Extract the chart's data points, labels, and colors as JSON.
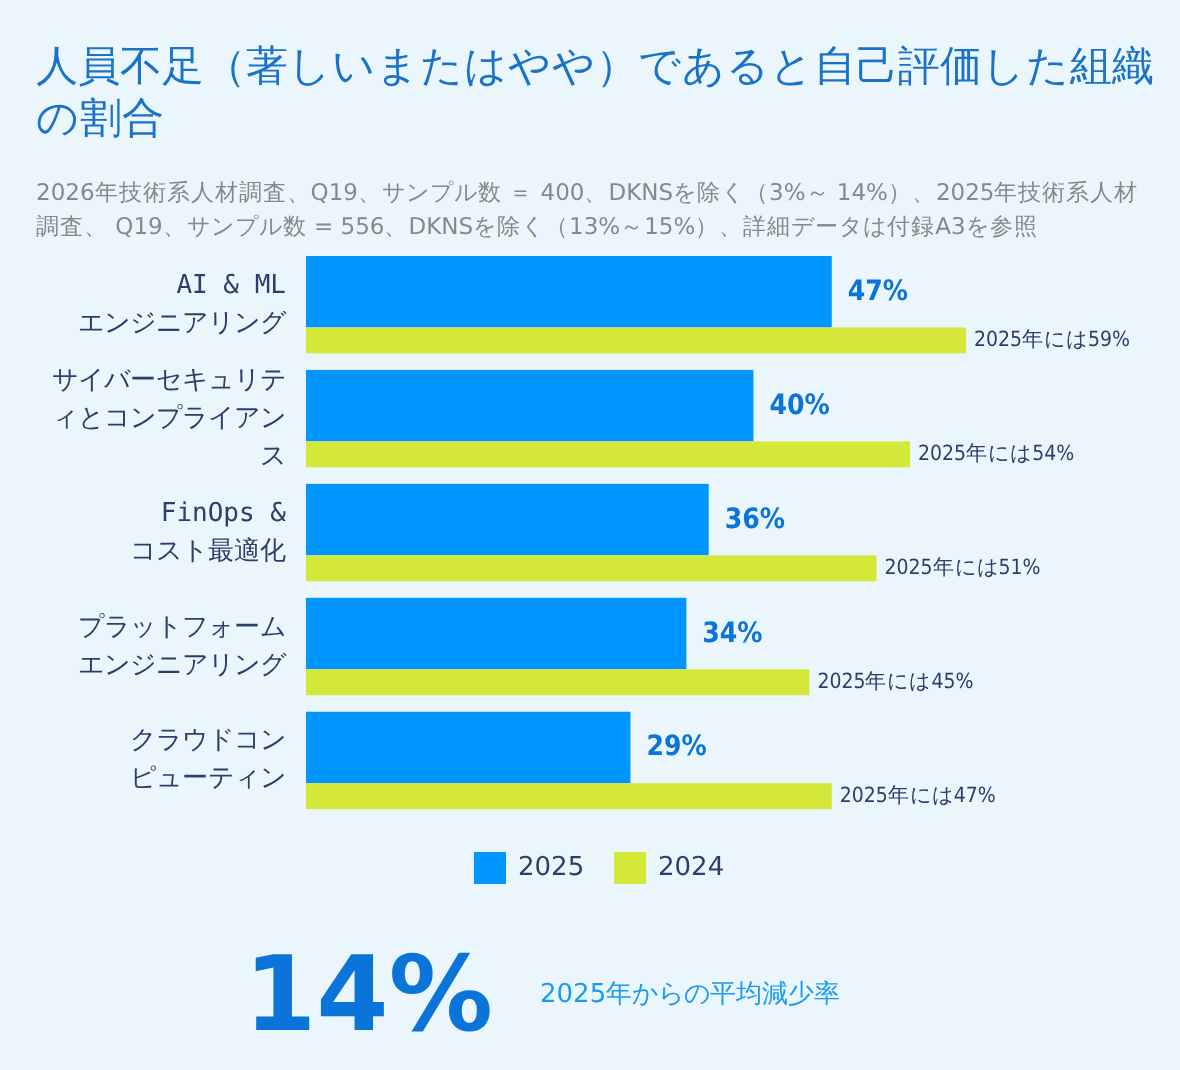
{
  "chart_data": {
    "type": "bar",
    "orientation": "horizontal",
    "title": "人員不足（著しいまたはやや）であると自己評価した組織の割合",
    "subtitle": "2026年技術系人材調査、Q19、サンプル数 ＝ 400、DKNSを除く（3%～ 14%）、2025年技術系人材調査、 Q19、サンプル数 = 556、DKNSを除く（13%～15%）、詳細データは付録A3を参照",
    "categories": [
      "AI & ML\nエンジニアリング",
      "サイバーセキュリティとコンプライアンス",
      "FinOps &\nコスト最適化",
      "プラットフォームエンジニアリング",
      "クラウドコンピューティン"
    ],
    "series": [
      {
        "name": "2025",
        "color": "#0095ff",
        "values": [
          47,
          40,
          36,
          34,
          29
        ],
        "value_labels": [
          "47%",
          "40%",
          "36%",
          "34%",
          "29%"
        ]
      },
      {
        "name": "2024",
        "color": "#d4e83a",
        "values": [
          59,
          54,
          51,
          45,
          47
        ],
        "value_labels": [
          "2025年には59%",
          "2025年には54%",
          "2025年には51%",
          "2025年には45%",
          "2025年には47%"
        ]
      }
    ],
    "legend": "bottom",
    "annotations": [
      "14%",
      "2025年からの平均減少率"
    ]
  }
}
